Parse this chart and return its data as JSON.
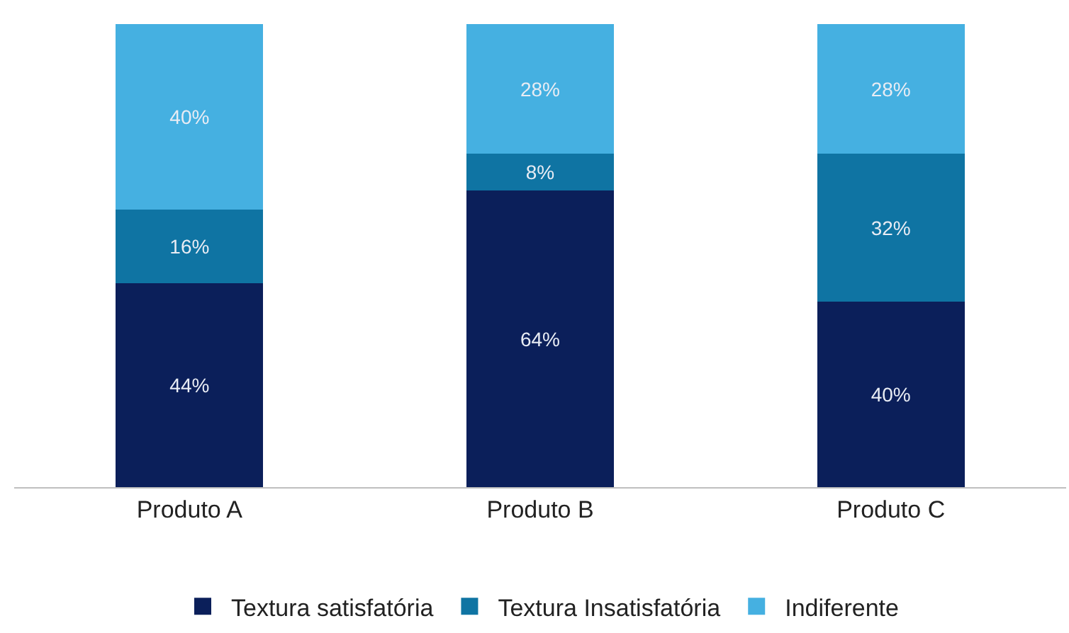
{
  "chart_data": {
    "type": "bar",
    "stacked": true,
    "categories": [
      "Produto A",
      "Produto B",
      "Produto C"
    ],
    "series": [
      {
        "name": "Textura satisfatória",
        "color": "#0b1f5a",
        "values": [
          44,
          64,
          40
        ],
        "value_labels": [
          "44%",
          "64%",
          "40%"
        ]
      },
      {
        "name": "Textura Insatisfatória",
        "color": "#0f74a3",
        "values": [
          16,
          8,
          32
        ],
        "value_labels": [
          "16%",
          "8%",
          "32%"
        ]
      },
      {
        "name": "Indiferente",
        "color": "#45b0e1",
        "values": [
          40,
          28,
          28
        ],
        "value_labels": [
          "40%",
          "28%",
          "28%"
        ]
      }
    ],
    "ylim": [
      0,
      100
    ],
    "tick_labels": "x",
    "legend": "bottom"
  }
}
